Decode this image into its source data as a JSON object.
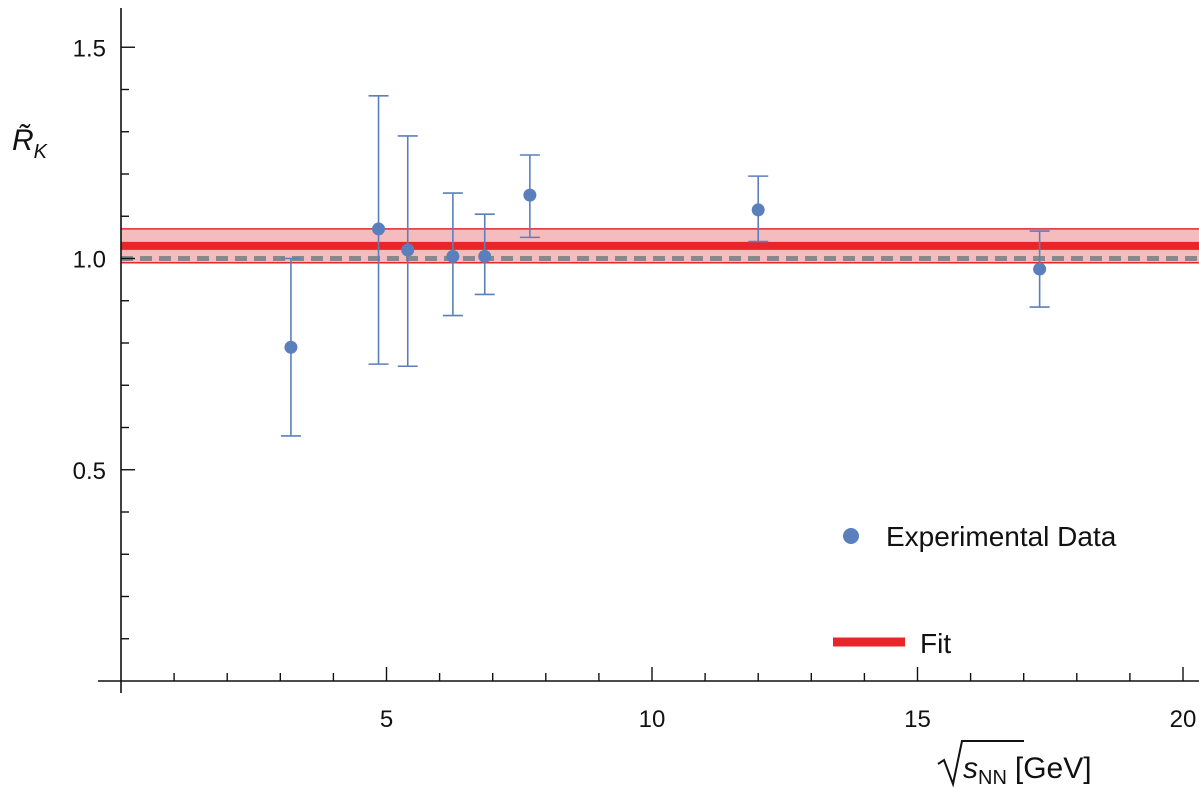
{
  "chart_data": {
    "type": "scatter",
    "ylabel": "R̃K",
    "xlabel": "√sNN [GeV]",
    "xlim": [
      0,
      20
    ],
    "ylim": [
      0,
      1.6
    ],
    "x_ticks_major": [
      5,
      10,
      15,
      20
    ],
    "x_tick_labels": [
      "5",
      "10",
      "15",
      "20"
    ],
    "y_ticks_major": [
      0.5,
      1.0,
      1.5
    ],
    "y_tick_labels": [
      "0.5",
      "1.0",
      "1.5"
    ],
    "grid": false,
    "legend_position": "bottom-right",
    "colors": {
      "data": "#5b7fbd",
      "fit": "#e8262a",
      "band": "#f2a5a8",
      "reference": "#888888"
    },
    "series": [
      {
        "name": "Experimental Data",
        "kind": "points-with-error-bars",
        "points": [
          {
            "x": 3.2,
            "y": 0.79,
            "y_low": 0.58,
            "y_high": 1.0
          },
          {
            "x": 4.85,
            "y": 1.07,
            "y_low": 0.75,
            "y_high": 1.385
          },
          {
            "x": 5.4,
            "y": 1.02,
            "y_low": 0.745,
            "y_high": 1.29
          },
          {
            "x": 6.25,
            "y": 1.005,
            "y_low": 0.865,
            "y_high": 1.155
          },
          {
            "x": 6.85,
            "y": 1.005,
            "y_low": 0.915,
            "y_high": 1.105
          },
          {
            "x": 7.7,
            "y": 1.15,
            "y_low": 1.05,
            "y_high": 1.245
          },
          {
            "x": 12.0,
            "y": 1.115,
            "y_low": 1.04,
            "y_high": 1.195
          },
          {
            "x": 17.3,
            "y": 0.975,
            "y_low": 0.885,
            "y_high": 1.065
          }
        ]
      },
      {
        "name": "Fit",
        "kind": "horizontal-line-with-band",
        "value": 1.03,
        "band_low": 0.99,
        "band_high": 1.07
      }
    ],
    "reference_line": {
      "y": 1.0,
      "style": "dashed"
    }
  }
}
